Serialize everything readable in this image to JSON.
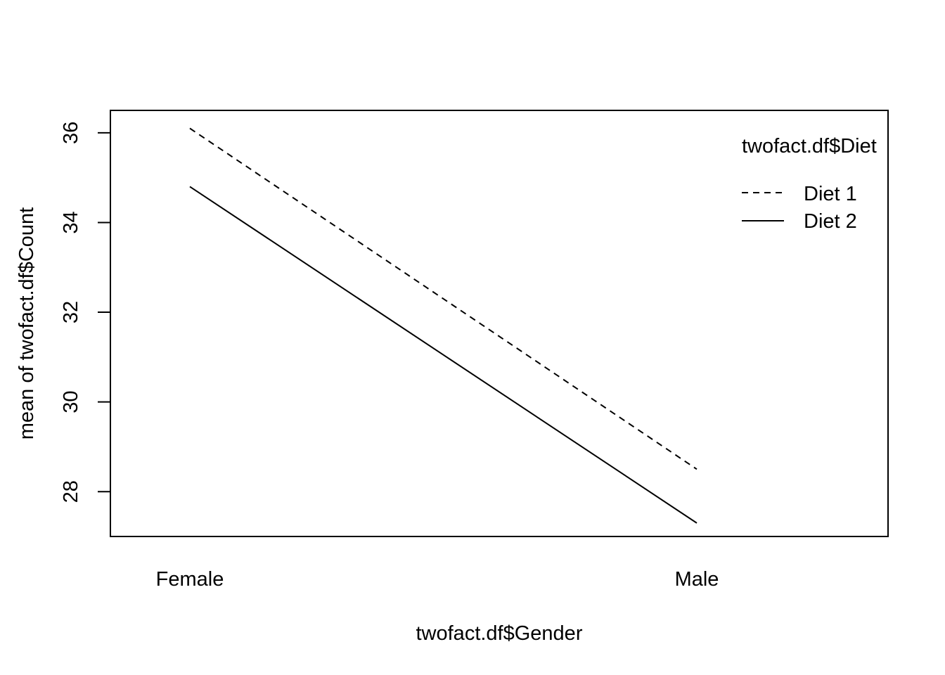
{
  "chart_data": {
    "type": "line",
    "xlabel": "twofact.df$Gender",
    "ylabel": "mean of  twofact.df$Count",
    "categories": [
      "Female",
      "Male"
    ],
    "ylim": [
      27.0,
      36.5
    ],
    "yticks": [
      28,
      30,
      32,
      34,
      36
    ],
    "grid": false,
    "legend": {
      "title": "twofact.df$Diet",
      "position": "top-right",
      "boxed": false
    },
    "series": [
      {
        "name": "Diet 1",
        "values": [
          36.1,
          28.5
        ],
        "line_style": "dashed",
        "color": "#000000"
      },
      {
        "name": "Diet 2",
        "values": [
          34.8,
          27.3
        ],
        "line_style": "solid",
        "color": "#000000"
      }
    ]
  }
}
